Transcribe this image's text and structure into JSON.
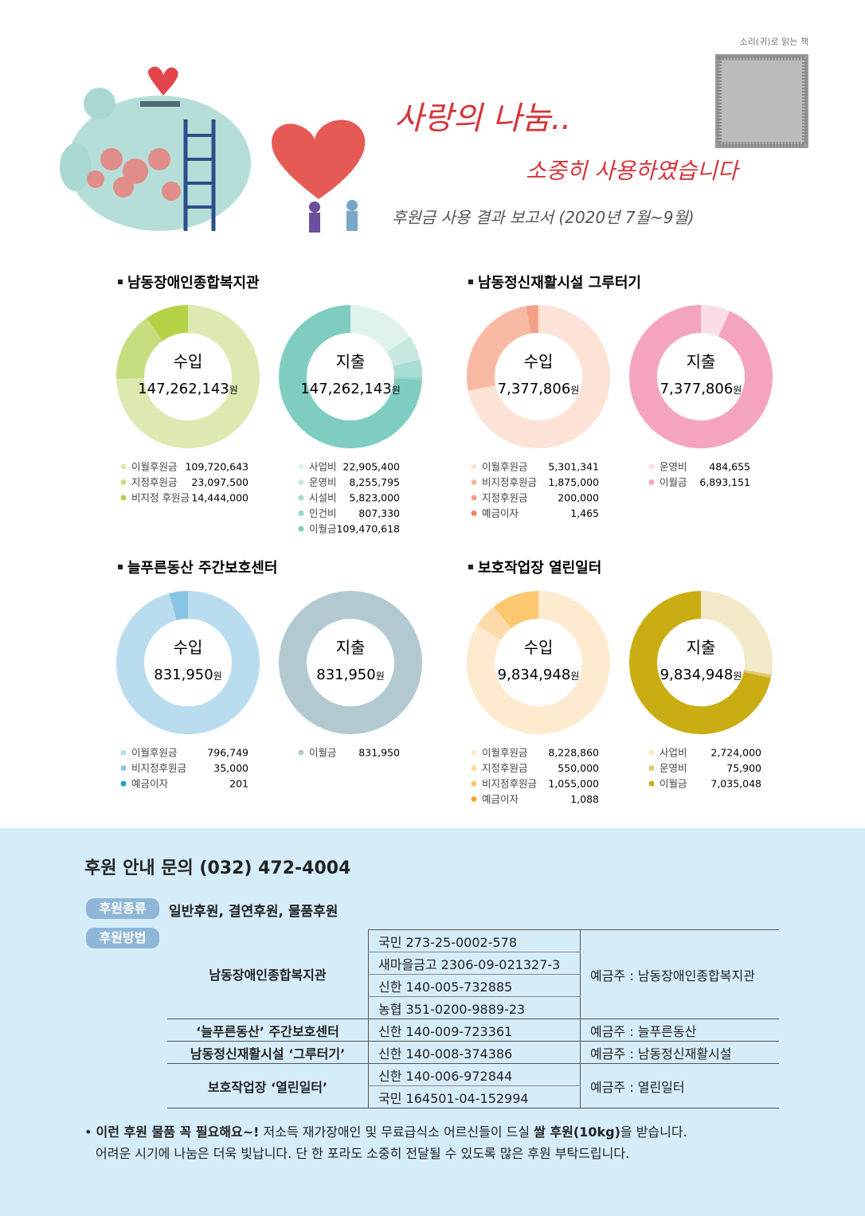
{
  "header": {
    "audio_note": "소리(귀)로 읽는 책",
    "title": "사랑의 나눔..",
    "subtitle": "소중히 사용하였습니다",
    "report": "후원금 사용 결과 보고서 (2020년 7월~9월)"
  },
  "section_titles": [
    "남동장애인종합복지관",
    "남동정신재활시설 그루터기",
    "늘푸른동산 주간보호센터",
    "보호작업장 열린일터"
  ],
  "chart_data": [
    {
      "type": "pie",
      "title": "수입",
      "total": 147262143,
      "total_label": "147,262,143",
      "unit": "원",
      "categories": [
        "이월후원금",
        "지정후원금",
        "비지정 후원금"
      ],
      "values": [
        109720643,
        23097500,
        14444000
      ],
      "value_labels": [
        "109,720,643",
        "23,097,500",
        "14,444,000"
      ],
      "colors": [
        "#dce9b0",
        "#c6dd80",
        "#b5d246"
      ]
    },
    {
      "type": "pie",
      "title": "지출",
      "total": 147262143,
      "total_label": "147,262,143",
      "unit": "원",
      "categories": [
        "사업비",
        "운영비",
        "시설비",
        "인건비",
        "이월금"
      ],
      "values": [
        22905400,
        8255795,
        5823000,
        807330,
        109470618
      ],
      "value_labels": [
        "22,905,400",
        "8,255,795",
        "5,823,000",
        "807,330",
        "109,470,618"
      ],
      "colors": [
        "#e0f2ee",
        "#c6e8e1",
        "#a8ddd4",
        "#95d5ca",
        "#7ecdc0"
      ]
    },
    {
      "type": "pie",
      "title": "수입",
      "total": 7377806,
      "total_label": "7,377,806",
      "unit": "원",
      "categories": [
        "이월후원금",
        "비지정후원금",
        "지정후원금",
        "예금이자"
      ],
      "values": [
        5301341,
        1875000,
        200000,
        1465
      ],
      "value_labels": [
        "5,301,341",
        "1,875,000",
        "200,000",
        "1,465"
      ],
      "colors": [
        "#fde2d8",
        "#f8b9a3",
        "#f4a088",
        "#ef8466"
      ]
    },
    {
      "type": "pie",
      "title": "지출",
      "total": 7377806,
      "total_label": "7,377,806",
      "unit": "원",
      "categories": [
        "운영비",
        "이월금"
      ],
      "values": [
        484655,
        6893151
      ],
      "value_labels": [
        "484,655",
        "6,893,151"
      ],
      "colors": [
        "#fbdde4",
        "#f4a5bd"
      ]
    },
    {
      "type": "pie",
      "title": "수입",
      "total": 831950,
      "total_label": "831,950",
      "unit": "원",
      "categories": [
        "이월후원금",
        "비지정후원금",
        "예금이자"
      ],
      "values": [
        796749,
        35000,
        201
      ],
      "value_labels": [
        "796,749",
        "35,000",
        "201"
      ],
      "colors": [
        "#badcef",
        "#88c5e4",
        "#1a9fd6"
      ]
    },
    {
      "type": "pie",
      "title": "지출",
      "total": 831950,
      "total_label": "831,950",
      "unit": "원",
      "categories": [
        "이월금"
      ],
      "values": [
        831950
      ],
      "value_labels": [
        "831,950"
      ],
      "colors": [
        "#b2c9d0"
      ]
    },
    {
      "type": "pie",
      "title": "수입",
      "total": 9834948,
      "total_label": "9,834,948",
      "unit": "원",
      "categories": [
        "이월후원금",
        "지정후원금",
        "비지정후원금",
        "예금이자"
      ],
      "values": [
        8228860,
        550000,
        1055000,
        1088
      ],
      "value_labels": [
        "8,228,860",
        "550,000",
        "1,055,000",
        "1,088"
      ],
      "colors": [
        "#fdeacf",
        "#fcdba8",
        "#fbc870",
        "#f4a62a"
      ]
    },
    {
      "type": "pie",
      "title": "지출",
      "total": 9834948,
      "total_label": "9,834,948",
      "unit": "원",
      "categories": [
        "사업비",
        "운영비",
        "이월금"
      ],
      "values": [
        2724000,
        75900,
        7035048
      ],
      "value_labels": [
        "2,724,000",
        "75,900",
        "7,035,048"
      ],
      "colors": [
        "#f2e9c9",
        "#e0c96f",
        "#c9ad12"
      ]
    }
  ],
  "support": {
    "inquiry": "후원 안내 문의 (032) 472-4004",
    "kind_tag": "후원종류",
    "kinds": "일반후원, 결연후원, 물품후원",
    "method_tag": "후원방법",
    "rows": [
      {
        "org": "남동장애인종합복지관",
        "accounts": [
          "국민 273-25-0002-578",
          "새마을금고  2306-09-021327-3",
          "신한 140-005-732885",
          "농협 351-0200-9889-23"
        ],
        "holder": "예금주 : 남동장애인종합복지관"
      },
      {
        "org": "‘늘푸른동산’ 주간보호센터",
        "accounts": [
          "신한 140-009-723361"
        ],
        "holder": "예금주 : 늘푸른동산"
      },
      {
        "org": "남동정신재활시설 ‘그루터기’",
        "accounts": [
          "신한 140-008-374386"
        ],
        "holder": "예금주 : 남동정신재활시설"
      },
      {
        "org": "보호작업장 ‘열린일터’",
        "accounts": [
          "신한 140-006-972844",
          "국민 164501-04-152994"
        ],
        "holder": "예금주 : 열린일터"
      }
    ],
    "note_bold1": "이런 후원 물품 꼭 필요해요~!",
    "note_text1": " 저소득 재가장애인 및 무료급식소 어르신들이 드실 ",
    "note_bold2": "쌀 후원(10kg)",
    "note_text2": "을 받습니다.",
    "note_line2": "어려운 시기에 나눔은 더욱 빛납니다. 단 한 포라도 소중히 전달될 수 있도록 많은 후원 부탁드립니다."
  }
}
